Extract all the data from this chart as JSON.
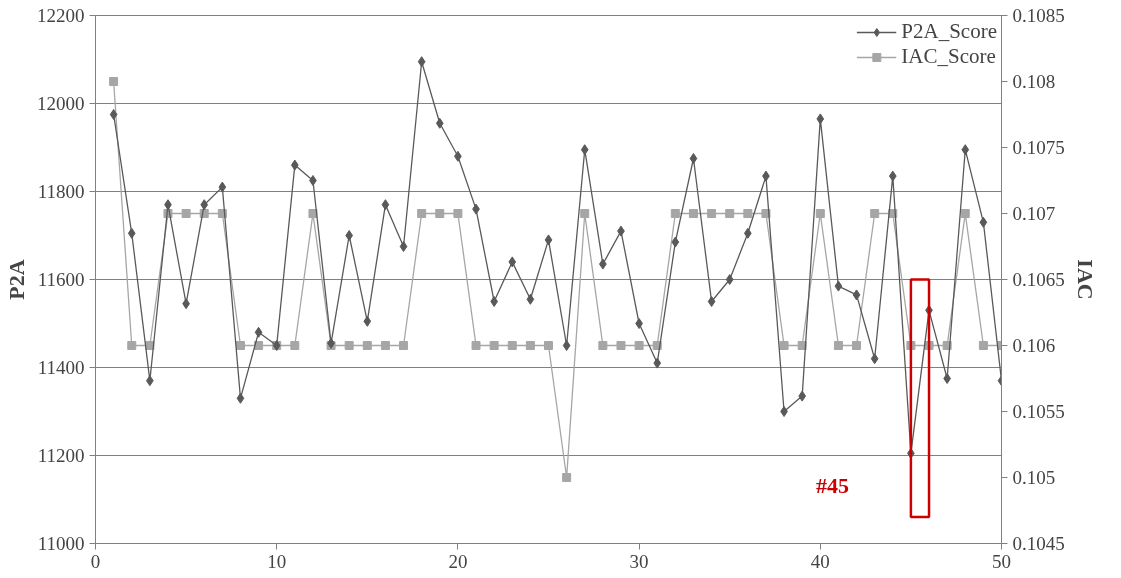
{
  "chart_data": {
    "type": "line",
    "xlabel": null,
    "ylabel": "P2A",
    "y2label": "IAC",
    "x": [
      1,
      2,
      3,
      4,
      5,
      6,
      7,
      8,
      9,
      10,
      11,
      12,
      13,
      14,
      15,
      16,
      17,
      18,
      19,
      20,
      21,
      22,
      23,
      24,
      25,
      26,
      27,
      28,
      29,
      30,
      31,
      32,
      33,
      34,
      35,
      36,
      37,
      38,
      39,
      40,
      41,
      42,
      43,
      44,
      45,
      46,
      47,
      48,
      49,
      50
    ],
    "series": [
      {
        "name": "P2A_Score",
        "color": "#595959",
        "marker": "diamond",
        "values": [
          11975,
          11705,
          11370,
          11770,
          11545,
          11770,
          11810,
          11330,
          11480,
          11450,
          11860,
          11825,
          11455,
          11700,
          11505,
          11770,
          11675,
          12095,
          11955,
          11880,
          11760,
          11550,
          11640,
          11555,
          11690,
          11450,
          11895,
          11635,
          11710,
          11500,
          11410,
          11685,
          11875,
          11550,
          11600,
          11705,
          11835,
          11300,
          11335,
          11965,
          11585,
          11565,
          11420,
          11835,
          11205,
          11530,
          11375,
          11895,
          11730,
          11370
        ]
      },
      {
        "name": "IAC_Score",
        "color": "#a6a6a6",
        "marker": "square",
        "axis": "y2",
        "values": [
          0.108,
          0.106,
          0.106,
          0.107,
          0.107,
          0.107,
          0.107,
          0.106,
          0.106,
          0.106,
          0.106,
          0.107,
          0.106,
          0.106,
          0.106,
          0.106,
          0.106,
          0.107,
          0.107,
          0.107,
          0.106,
          0.106,
          0.106,
          0.106,
          0.106,
          0.105,
          0.107,
          0.106,
          0.106,
          0.106,
          0.106,
          0.107,
          0.107,
          0.107,
          0.107,
          0.107,
          0.107,
          0.106,
          0.106,
          0.107,
          0.106,
          0.106,
          0.107,
          0.107,
          0.106,
          0.106,
          0.106,
          0.107,
          0.106,
          0.106
        ]
      }
    ],
    "xlim": [
      0,
      50
    ],
    "xticks": [
      0,
      10,
      20,
      30,
      40,
      50
    ],
    "ylim": [
      11000,
      12200
    ],
    "yticks": [
      11000,
      11200,
      11400,
      11600,
      11800,
      12000,
      12200
    ],
    "y2lim": [
      0.1045,
      0.1085
    ],
    "y2ticks": [
      0.1045,
      0.105,
      0.1055,
      0.106,
      0.1065,
      0.107,
      0.1075,
      0.108,
      0.1085
    ],
    "grid": "y",
    "legend": "top right",
    "annotations": [
      {
        "text": "#45",
        "x": 45,
        "y": 11205
      }
    ]
  }
}
